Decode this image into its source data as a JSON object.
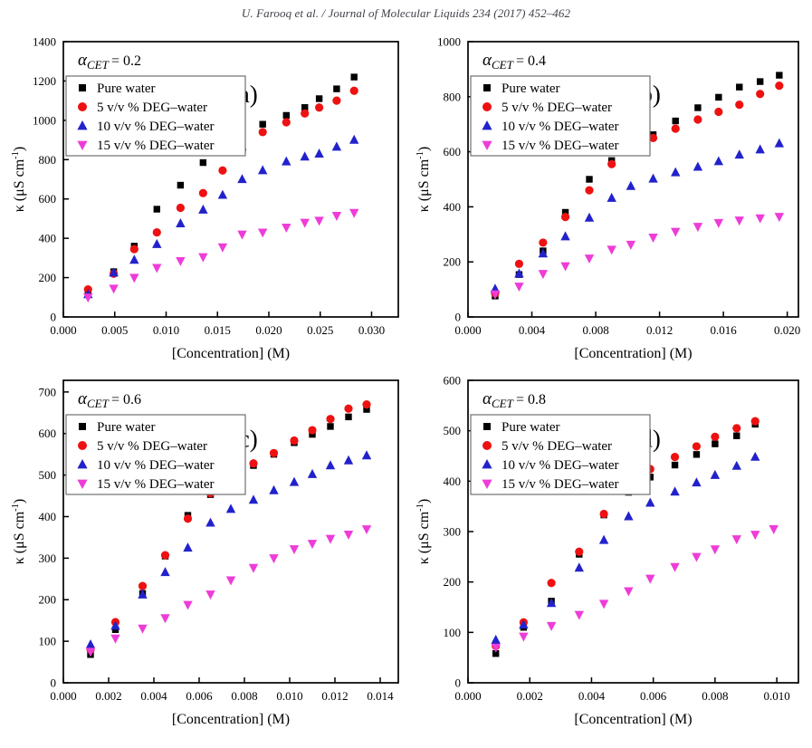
{
  "header": {
    "citation": "U. Farooq et al. / Journal of Molecular Liquids 234 (2017) 452–462"
  },
  "colors": {
    "pure_water": "#000000",
    "deg5": "#ee1111",
    "deg10": "#2222cc",
    "deg15": "#ee3cd8",
    "legend_border": "#707070",
    "axis": "#000000",
    "header_text": "#3f3f4a"
  },
  "legend_entries": [
    {
      "label": "Pure water",
      "marker": "square",
      "color": "#000000"
    },
    {
      "label": "5 v/v % DEG–water",
      "marker": "circle",
      "color": "#ee1111"
    },
    {
      "label": "10 v/v % DEG–water",
      "marker": "triangle-up",
      "color": "#2222cc"
    },
    {
      "label": "15 v/v % DEG–water",
      "marker": "triangle-down",
      "color": "#ee3cd8"
    }
  ],
  "chart_data": [
    {
      "type": "scatter",
      "id": "a",
      "panel_label": "(a)",
      "alpha_label": {
        "symbol": "α",
        "subscript": "CET",
        "value_text": "= 0.2"
      },
      "xlabel": "[Concentration] (M)",
      "ylabel": {
        "pre": "κ (μS cm",
        "sup": "-1",
        "post": ")"
      },
      "xlim": [
        0,
        0.0326
      ],
      "xticks": [
        0,
        0.005,
        0.01,
        0.015,
        0.02,
        0.025,
        0.03
      ],
      "xtick_decimals": 3,
      "ylim": [
        0,
        1400
      ],
      "yticks": [
        0,
        200,
        400,
        600,
        800,
        1000,
        1200,
        1400
      ],
      "grid": false,
      "series": [
        {
          "name": "Pure water",
          "marker": "square",
          "color": "#000000",
          "x": [
            0.0024,
            0.0049,
            0.0069,
            0.0091,
            0.0114,
            0.0136,
            0.0155,
            0.0174,
            0.0194,
            0.0217,
            0.0235,
            0.0249,
            0.0266,
            0.0283
          ],
          "y": [
            135,
            230,
            360,
            548,
            670,
            785,
            850,
            912,
            980,
            1025,
            1065,
            1110,
            1160,
            1220
          ]
        },
        {
          "name": "5 v/v % DEG–water",
          "marker": "circle",
          "color": "#ee1111",
          "x": [
            0.0024,
            0.0049,
            0.0069,
            0.0091,
            0.0114,
            0.0136,
            0.0155,
            0.0174,
            0.0194,
            0.0217,
            0.0235,
            0.0249,
            0.0266,
            0.0283
          ],
          "y": [
            140,
            220,
            345,
            430,
            555,
            630,
            745,
            850,
            940,
            990,
            1035,
            1065,
            1100,
            1150
          ]
        },
        {
          "name": "10 v/v % DEG–water",
          "marker": "triangle-up",
          "color": "#2222cc",
          "x": [
            0.0024,
            0.0049,
            0.0069,
            0.0091,
            0.0114,
            0.0136,
            0.0155,
            0.0174,
            0.0194,
            0.0217,
            0.0235,
            0.0249,
            0.0266,
            0.0283
          ],
          "y": [
            115,
            225,
            290,
            370,
            475,
            545,
            620,
            700,
            745,
            790,
            815,
            830,
            865,
            900
          ]
        },
        {
          "name": "15 v/v % DEG–water",
          "marker": "triangle-down",
          "color": "#ee3cd8",
          "x": [
            0.0024,
            0.0049,
            0.0069,
            0.0091,
            0.0114,
            0.0136,
            0.0155,
            0.0174,
            0.0194,
            0.0217,
            0.0235,
            0.0249,
            0.0266,
            0.0283
          ],
          "y": [
            100,
            145,
            200,
            250,
            285,
            305,
            355,
            420,
            430,
            455,
            480,
            490,
            515,
            530
          ]
        }
      ]
    },
    {
      "type": "scatter",
      "id": "b",
      "panel_label": "(b)",
      "alpha_label": {
        "symbol": "α",
        "subscript": "CET",
        "value_text": "= 0.4"
      },
      "xlabel": "[Concentration] (M)",
      "ylabel": {
        "pre": "κ (μS cm",
        "sup": "-1",
        "post": ")"
      },
      "xlim": [
        0,
        0.0207
      ],
      "xticks": [
        0,
        0.004,
        0.008,
        0.012,
        0.016,
        0.02
      ],
      "xtick_decimals": 3,
      "ylim": [
        0,
        1000
      ],
      "yticks": [
        0,
        200,
        400,
        600,
        800,
        1000
      ],
      "grid": false,
      "series": [
        {
          "name": "Pure water",
          "marker": "square",
          "color": "#000000",
          "x": [
            0.0017,
            0.0032,
            0.0047,
            0.0061,
            0.0076,
            0.009,
            0.0102,
            0.0116,
            0.013,
            0.0144,
            0.0157,
            0.017,
            0.0183,
            0.0195
          ],
          "y": [
            76,
            154,
            240,
            380,
            500,
            568,
            613,
            662,
            712,
            760,
            798,
            835,
            855,
            878
          ]
        },
        {
          "name": "5 v/v % DEG–water",
          "marker": "circle",
          "color": "#ee1111",
          "x": [
            0.0017,
            0.0032,
            0.0047,
            0.0061,
            0.0076,
            0.009,
            0.0102,
            0.0116,
            0.013,
            0.0144,
            0.0157,
            0.017,
            0.0183,
            0.0195
          ],
          "y": [
            86,
            193,
            270,
            363,
            460,
            555,
            602,
            650,
            684,
            717,
            745,
            771,
            810,
            840
          ]
        },
        {
          "name": "10 v/v % DEG–water",
          "marker": "triangle-up",
          "color": "#2222cc",
          "x": [
            0.0017,
            0.0032,
            0.0047,
            0.0061,
            0.0076,
            0.009,
            0.0102,
            0.0116,
            0.013,
            0.0144,
            0.0157,
            0.017,
            0.0183,
            0.0195
          ],
          "y": [
            102,
            157,
            230,
            292,
            360,
            432,
            475,
            502,
            525,
            545,
            565,
            589,
            608,
            630
          ]
        },
        {
          "name": "15 v/v % DEG–water",
          "marker": "triangle-down",
          "color": "#ee3cd8",
          "x": [
            0.0017,
            0.0032,
            0.0047,
            0.0061,
            0.0076,
            0.009,
            0.0102,
            0.0116,
            0.013,
            0.0144,
            0.0157,
            0.017,
            0.0183,
            0.0195
          ],
          "y": [
            83,
            111,
            157,
            185,
            213,
            245,
            263,
            289,
            310,
            328,
            342,
            351,
            359,
            364
          ]
        }
      ]
    },
    {
      "type": "scatter",
      "id": "c",
      "panel_label": "(c)",
      "alpha_label": {
        "symbol": "α",
        "subscript": "CET",
        "value_text": "= 0.6"
      },
      "xlabel": "[Concentration] (M)",
      "ylabel": {
        "pre": "κ (μS cm",
        "sup": "-1",
        "post": ")"
      },
      "xlim": [
        0,
        0.0148
      ],
      "xticks": [
        0,
        0.002,
        0.004,
        0.006,
        0.008,
        0.01,
        0.012,
        0.014
      ],
      "xtick_decimals": 3,
      "ylim": [
        0,
        728
      ],
      "yticks": [
        0,
        100,
        200,
        300,
        400,
        500,
        600,
        700
      ],
      "grid": false,
      "series": [
        {
          "name": "Pure water",
          "marker": "square",
          "color": "#000000",
          "x": [
            0.0012,
            0.0023,
            0.0035,
            0.0045,
            0.0055,
            0.0065,
            0.0074,
            0.0084,
            0.0093,
            0.0102,
            0.011,
            0.0118,
            0.0126,
            0.0134
          ],
          "y": [
            68,
            128,
            215,
            305,
            403,
            453,
            490,
            523,
            550,
            578,
            598,
            617,
            640,
            658
          ]
        },
        {
          "name": "5 v/v % DEG–water",
          "marker": "circle",
          "color": "#ee1111",
          "x": [
            0.0012,
            0.0023,
            0.0035,
            0.0045,
            0.0055,
            0.0065,
            0.0074,
            0.0084,
            0.0093,
            0.0102,
            0.011,
            0.0118,
            0.0126,
            0.0134
          ],
          "y": [
            80,
            146,
            233,
            307,
            395,
            456,
            500,
            528,
            553,
            583,
            608,
            635,
            660,
            670
          ]
        },
        {
          "name": "10 v/v % DEG–water",
          "marker": "triangle-up",
          "color": "#2222cc",
          "x": [
            0.0012,
            0.0023,
            0.0035,
            0.0045,
            0.0055,
            0.0065,
            0.0074,
            0.0084,
            0.0093,
            0.0102,
            0.011,
            0.0118,
            0.0126,
            0.0134
          ],
          "y": [
            92,
            137,
            212,
            266,
            325,
            385,
            418,
            440,
            463,
            483,
            502,
            523,
            535,
            547
          ]
        },
        {
          "name": "15 v/v % DEG–water",
          "marker": "triangle-down",
          "color": "#ee3cd8",
          "x": [
            0.0012,
            0.0023,
            0.0035,
            0.0045,
            0.0055,
            0.0065,
            0.0074,
            0.0084,
            0.0093,
            0.0102,
            0.011,
            0.0118,
            0.0126,
            0.0134
          ],
          "y": [
            75,
            107,
            131,
            156,
            188,
            213,
            247,
            277,
            300,
            322,
            335,
            347,
            357,
            370
          ]
        }
      ]
    },
    {
      "type": "scatter",
      "id": "d",
      "panel_label": "(d)",
      "alpha_label": {
        "symbol": "α",
        "subscript": "CET",
        "value_text": "= 0.8"
      },
      "xlabel": "[Concentration] (M)",
      "ylabel": {
        "pre": "κ (μS cm",
        "sup": "-1",
        "post": ")"
      },
      "xlim": [
        0,
        0.0107
      ],
      "xticks": [
        0,
        0.002,
        0.004,
        0.006,
        0.008,
        0.01
      ],
      "xtick_decimals": 3,
      "ylim": [
        0,
        600
      ],
      "yticks": [
        0,
        100,
        200,
        300,
        400,
        500,
        600
      ],
      "grid": false,
      "series": [
        {
          "name": "Pure water",
          "marker": "square",
          "color": "#000000",
          "x": [
            0.0009,
            0.0018,
            0.0027,
            0.0036,
            0.0044,
            0.0052,
            0.0059,
            0.0067,
            0.0074,
            0.008,
            0.0087,
            0.0093
          ],
          "y": [
            58,
            110,
            162,
            255,
            333,
            378,
            408,
            432,
            453,
            474,
            490,
            513
          ]
        },
        {
          "name": "5 v/v % DEG–water",
          "marker": "circle",
          "color": "#ee1111",
          "x": [
            0.0009,
            0.0018,
            0.0027,
            0.0036,
            0.0044,
            0.0052,
            0.0059,
            0.0067,
            0.0074,
            0.008,
            0.0087,
            0.0093
          ],
          "y": [
            73,
            120,
            198,
            260,
            335,
            395,
            424,
            448,
            469,
            488,
            505,
            519
          ]
        },
        {
          "name": "10 v/v % DEG–water",
          "marker": "triangle-up",
          "color": "#2222cc",
          "x": [
            0.0009,
            0.0018,
            0.0027,
            0.0036,
            0.0044,
            0.0052,
            0.0059,
            0.0067,
            0.0074,
            0.008,
            0.0087,
            0.0093
          ],
          "y": [
            85,
            115,
            158,
            228,
            283,
            330,
            357,
            379,
            397,
            412,
            430,
            448
          ]
        },
        {
          "name": "15 v/v % DEG–water",
          "marker": "triangle-down",
          "color": "#ee3cd8",
          "x": [
            0.0009,
            0.0018,
            0.0027,
            0.0036,
            0.0044,
            0.0052,
            0.0059,
            0.0067,
            0.0074,
            0.008,
            0.0087,
            0.0093,
            0.0099
          ],
          "y": [
            70,
            92,
            113,
            135,
            157,
            182,
            207,
            230,
            250,
            265,
            285,
            294,
            305
          ]
        }
      ]
    }
  ]
}
